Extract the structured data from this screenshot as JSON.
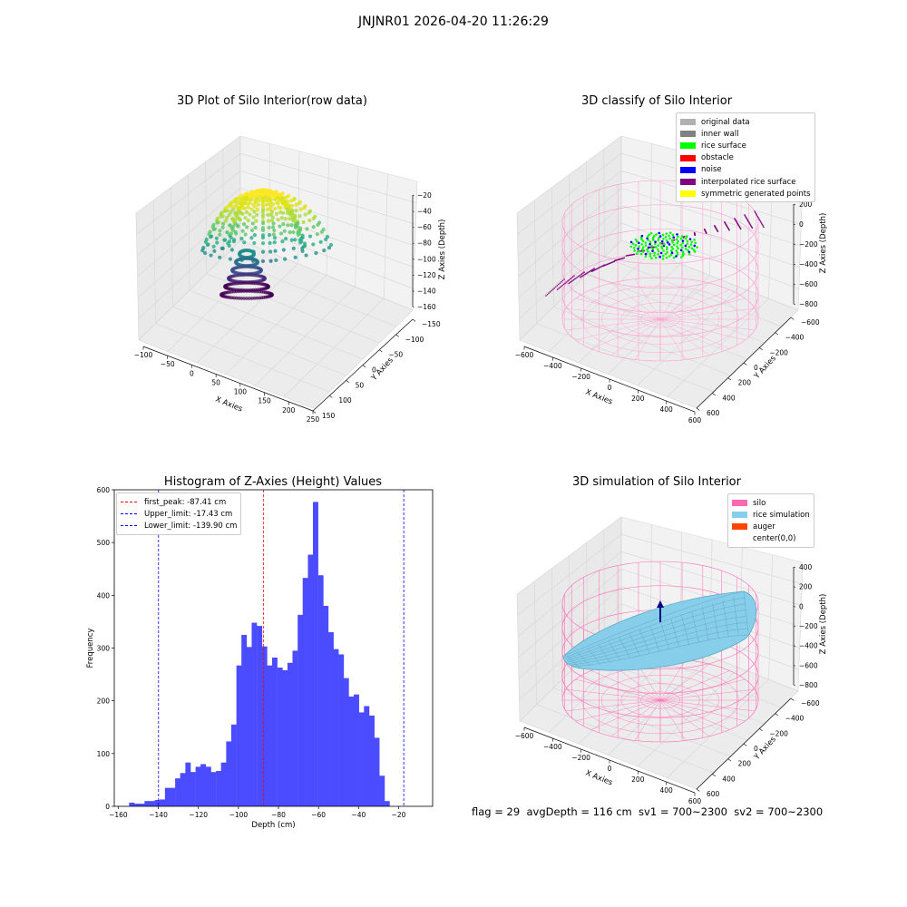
{
  "suptitle": "JNJNR01 2026-04-20 11:26:29",
  "panels": {
    "raw": {
      "title": "3D Plot of Silo Interior(row data)",
      "xlabel": "X Axies",
      "ylabel": "Y Axies",
      "zlabel": "Z Axies (Depth)",
      "xticks": [
        "−100",
        "−50",
        "0",
        "50",
        "100",
        "150",
        "200",
        "250"
      ],
      "yticks": [
        "150",
        "100",
        "50",
        "0",
        "−50",
        "−100",
        "−150"
      ],
      "zticks": [
        "−20",
        "−40",
        "−60",
        "−80",
        "−100",
        "−120",
        "−140",
        "−160"
      ]
    },
    "classify": {
      "title": "3D classify of Silo Interior",
      "xlabel": "X Axies",
      "ylabel": "Y Axies",
      "zlabel": "Z Axies (Depth)",
      "xticks": [
        "−600",
        "−400",
        "−200",
        "0",
        "200",
        "400",
        "600"
      ],
      "yticks": [
        "600",
        "400",
        "200",
        "0",
        "−200",
        "−400",
        "−600"
      ],
      "zticks": [
        "200",
        "0",
        "−200",
        "−400",
        "−600",
        "−800"
      ],
      "legend": [
        {
          "label": "original data",
          "color": "#b0b0b0"
        },
        {
          "label": "inner wall",
          "color": "#808080"
        },
        {
          "label": "rice surface",
          "color": "#00ff00"
        },
        {
          "label": "obstacle",
          "color": "#ff0000"
        },
        {
          "label": "noise",
          "color": "#0000ff"
        },
        {
          "label": "interpolated rice surface",
          "color": "#800080"
        },
        {
          "label": "symmetric generated points",
          "color": "#ffff00"
        }
      ]
    },
    "simulation": {
      "title": "3D simulation of Silo Interior",
      "xlabel": "X Axies",
      "ylabel": "Y Axies",
      "zlabel": "Z Axies (Depth)",
      "xticks": [
        "−600",
        "−400",
        "−200",
        "0",
        "200",
        "400",
        "600"
      ],
      "yticks": [
        "600",
        "400",
        "200",
        "0",
        "−200",
        "−400",
        "−600"
      ],
      "zticks": [
        "400",
        "200",
        "0",
        "−200",
        "−400",
        "−600",
        "−800"
      ],
      "legend": [
        {
          "label": "silo",
          "color": "#ff69b4"
        },
        {
          "label": "rice simulation",
          "color": "#87ceeb"
        },
        {
          "label": "auger",
          "color": "#ff4500"
        },
        {
          "label": "center(0,0)",
          "color": ""
        }
      ]
    }
  },
  "histogram": {
    "title": "Histogram of Z-Axies (Height) Values",
    "legend": [
      {
        "label": "first_peak: -87.41 cm",
        "color": "#ff0000"
      },
      {
        "label": "Upper_limit: -17.43 cm",
        "color": "#0000ff"
      },
      {
        "label": "Lower_limit: -139.90 cm",
        "color": "#0000ff"
      }
    ]
  },
  "status_text": "flag = 29  avgDepth = 116 cm  sv1 = 700~2300  sv2 = 700~2300",
  "chart_data": {
    "type": "bar",
    "title": "Histogram of Z-Axies (Height) Values",
    "xlabel": "Depth (cm)",
    "ylabel": "Frequency",
    "xlim": [
      -162,
      -3
    ],
    "ylim": [
      0,
      600
    ],
    "xticks": [
      -160,
      -140,
      -120,
      -100,
      -80,
      -60,
      -40,
      -20
    ],
    "yticks": [
      0,
      100,
      200,
      300,
      400,
      500,
      600
    ],
    "bin_width": 2.55,
    "bins": [
      {
        "x": -154.6,
        "count": 7
      },
      {
        "x": -152.0,
        "count": 5
      },
      {
        "x": -149.5,
        "count": 5
      },
      {
        "x": -146.9,
        "count": 10
      },
      {
        "x": -144.4,
        "count": 10
      },
      {
        "x": -141.8,
        "count": 12
      },
      {
        "x": -139.3,
        "count": 13
      },
      {
        "x": -136.7,
        "count": 35
      },
      {
        "x": -134.2,
        "count": 35
      },
      {
        "x": -131.6,
        "count": 53
      },
      {
        "x": -129.1,
        "count": 63
      },
      {
        "x": -126.5,
        "count": 83
      },
      {
        "x": -124.0,
        "count": 65
      },
      {
        "x": -121.4,
        "count": 75
      },
      {
        "x": -118.9,
        "count": 80
      },
      {
        "x": -116.3,
        "count": 75
      },
      {
        "x": -113.8,
        "count": 65
      },
      {
        "x": -111.2,
        "count": 67
      },
      {
        "x": -108.7,
        "count": 83
      },
      {
        "x": -106.1,
        "count": 123
      },
      {
        "x": -103.6,
        "count": 155
      },
      {
        "x": -101.0,
        "count": 267
      },
      {
        "x": -98.5,
        "count": 325
      },
      {
        "x": -95.9,
        "count": 302
      },
      {
        "x": -93.4,
        "count": 348
      },
      {
        "x": -90.8,
        "count": 342
      },
      {
        "x": -88.3,
        "count": 303
      },
      {
        "x": -85.7,
        "count": 267
      },
      {
        "x": -83.2,
        "count": 282
      },
      {
        "x": -80.6,
        "count": 263
      },
      {
        "x": -78.1,
        "count": 258
      },
      {
        "x": -75.5,
        "count": 272
      },
      {
        "x": -73.0,
        "count": 295
      },
      {
        "x": -70.4,
        "count": 363
      },
      {
        "x": -67.9,
        "count": 433
      },
      {
        "x": -65.3,
        "count": 477
      },
      {
        "x": -62.8,
        "count": 577
      },
      {
        "x": -60.2,
        "count": 438
      },
      {
        "x": -57.7,
        "count": 380
      },
      {
        "x": -55.1,
        "count": 330
      },
      {
        "x": -52.6,
        "count": 298
      },
      {
        "x": -50.0,
        "count": 288
      },
      {
        "x": -47.5,
        "count": 243
      },
      {
        "x": -44.9,
        "count": 208
      },
      {
        "x": -42.4,
        "count": 212
      },
      {
        "x": -39.8,
        "count": 178
      },
      {
        "x": -37.3,
        "count": 190
      },
      {
        "x": -34.7,
        "count": 172
      },
      {
        "x": -32.2,
        "count": 130
      },
      {
        "x": -29.6,
        "count": 58
      },
      {
        "x": -27.1,
        "count": 10
      }
    ],
    "vlines": [
      {
        "label": "first_peak: -87.41 cm",
        "x": -87.41,
        "color": "#ff0000"
      },
      {
        "label": "Upper_limit: -17.43 cm",
        "x": -17.43,
        "color": "#0000ff"
      },
      {
        "label": "Lower_limit: -139.90 cm",
        "x": -139.9,
        "color": "#0000ff"
      }
    ]
  }
}
